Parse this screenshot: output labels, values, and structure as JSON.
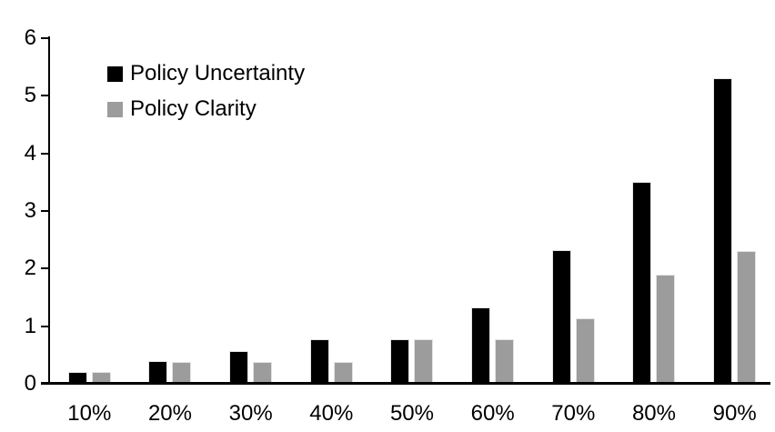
{
  "chart_data": {
    "type": "bar",
    "title": "",
    "xlabel": "",
    "ylabel": "",
    "categories": [
      "10%",
      "20%",
      "30%",
      "40%",
      "50%",
      "60%",
      "70%",
      "80%",
      "90%"
    ],
    "series": [
      {
        "name": "Policy Uncertainty",
        "color": "#000000",
        "values": [
          0.2,
          0.4,
          0.57,
          0.77,
          0.78,
          1.33,
          2.32,
          3.5,
          5.3
        ]
      },
      {
        "name": "Policy Clarity",
        "color": "#9C9C9C",
        "values": [
          0.2,
          0.38,
          0.38,
          0.38,
          0.77,
          0.77,
          1.14,
          1.9,
          2.3
        ]
      }
    ],
    "ylim": [
      0,
      6
    ],
    "yticks": [
      0,
      1,
      2,
      3,
      4,
      5,
      6
    ],
    "grid": false,
    "legend_position": "top-left"
  },
  "colors": {
    "axis": "#000000",
    "bar_border": "#e3e3e3",
    "text": "#000000",
    "background": "#ffffff"
  }
}
